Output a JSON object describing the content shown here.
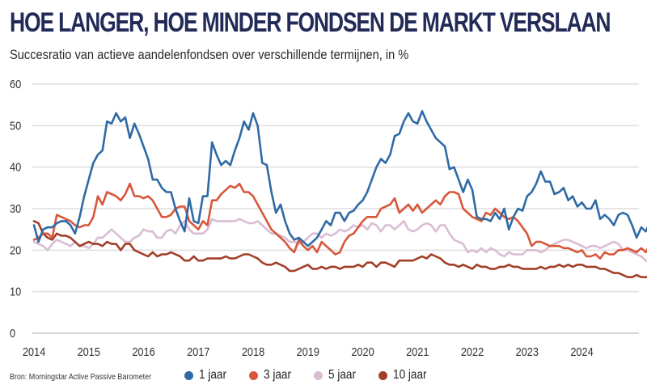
{
  "chart_data": {
    "type": "line",
    "title": "HOE LANGER, HOE MINDER FONDSEN DE MARKT VERSLAAN",
    "subtitle": "Succesratio van actieve aandelenfondsen over verschillende termijnen, in %",
    "xlabel": "",
    "ylabel": "",
    "ylim": [
      0,
      60
    ],
    "yticks": [
      "0",
      "10",
      "20",
      "30",
      "40",
      "50",
      "60"
    ],
    "ytick_values": [
      0,
      10,
      20,
      30,
      40,
      50,
      60
    ],
    "xlim": [
      2014,
      2024.92
    ],
    "xticks": [
      "2014",
      "2015",
      "2016",
      "2017",
      "2018",
      "2019",
      "2020",
      "2021",
      "2022",
      "2023",
      "2024"
    ],
    "xtick_values": [
      2014,
      2015,
      2016,
      2017,
      2018,
      2019,
      2020,
      2021,
      2022,
      2023,
      2024
    ],
    "x_start": 2014,
    "x_step": 0.0833333,
    "grid": "horizontal",
    "legend_position": "bottom",
    "source": "Bron: Morningstar Active Passive Barometer",
    "series": [
      {
        "name": "1 jaar",
        "color": "#2f6aa6",
        "values": [
          26,
          22,
          25,
          25.5,
          25.5,
          26.5,
          27,
          27,
          26,
          24,
          28,
          33,
          37,
          41,
          43,
          44,
          51,
          50.5,
          53,
          51,
          52,
          47,
          50.5,
          48,
          45,
          42,
          37,
          37,
          35,
          34,
          34,
          30,
          27,
          24.5,
          32.5,
          27,
          26.5,
          33,
          33,
          46,
          43,
          40.5,
          41.5,
          40.5,
          44,
          47,
          51,
          49,
          53,
          50,
          41,
          40.5,
          34,
          29,
          31,
          27,
          24,
          22.5,
          23,
          22,
          21,
          22,
          23,
          25,
          27,
          26,
          29,
          29,
          27,
          29,
          29.5,
          31,
          32,
          34,
          37,
          40,
          42,
          41,
          43,
          47.5,
          48,
          51,
          53,
          51,
          50.5,
          53.5,
          51,
          49,
          47,
          46,
          45,
          39.5,
          40,
          37,
          34,
          37,
          34.5,
          28,
          27.5,
          27.5,
          27,
          29,
          27.5,
          30,
          25,
          28,
          30,
          29.5,
          33,
          34,
          36,
          39,
          36.5,
          36.5,
          33.5,
          34,
          35,
          32,
          33,
          30.5,
          31.5,
          30,
          30,
          32,
          27.5,
          28.5,
          27.5,
          26,
          28.5,
          29,
          28.5,
          26,
          23,
          25.5,
          24.5,
          27,
          29
        ]
      },
      {
        "name": "3 jaar",
        "color": "#d8573a",
        "values": [
          22.5,
          23,
          24,
          24,
          23,
          28.5,
          28,
          27.5,
          27,
          26,
          25.5,
          26,
          26,
          28,
          33,
          31,
          34,
          33.5,
          33,
          32,
          33.5,
          36,
          33,
          33,
          32.5,
          33,
          32,
          30,
          28,
          28,
          28.5,
          30,
          30.5,
          30.5,
          27,
          26,
          25,
          27,
          26,
          32,
          32,
          33.5,
          34.5,
          35.5,
          35,
          36,
          34,
          34,
          33,
          31,
          29,
          27,
          25,
          24,
          23,
          22,
          20.5,
          19.5,
          22.5,
          21,
          20,
          21,
          19.5,
          22,
          21,
          20,
          19,
          19.5,
          22,
          23.5,
          24,
          25.5,
          27,
          28,
          28,
          28,
          30,
          30.5,
          31,
          32.5,
          29,
          30,
          31,
          29.5,
          31,
          29,
          30,
          31,
          32,
          31,
          33,
          34,
          34,
          33.5,
          30,
          29,
          28,
          27.5,
          27,
          29,
          28.5,
          30,
          29,
          28,
          27.5,
          28,
          27,
          25.5,
          24,
          21,
          22,
          22,
          21.5,
          21,
          21,
          21,
          20.5,
          20.5,
          20,
          19.5,
          20,
          18.5,
          18.5,
          19,
          18,
          19.5,
          19,
          19,
          20,
          20,
          20.5,
          20,
          19.5,
          20.5,
          19.5,
          21.5,
          21
        ]
      },
      {
        "name": "5 jaar",
        "color": "#d9bdd3",
        "values": [
          22,
          21.5,
          21,
          20,
          21.5,
          22.5,
          22,
          21.5,
          21,
          22,
          21,
          21,
          20.5,
          21.5,
          23,
          23,
          24,
          25,
          24,
          23,
          22,
          22,
          23,
          23.5,
          25,
          24.5,
          24.5,
          23,
          23,
          24.5,
          25,
          24,
          26,
          27,
          25,
          24,
          24,
          24,
          25,
          27.5,
          27,
          27,
          27,
          27,
          27,
          27.5,
          27,
          26.5,
          26.5,
          27,
          26,
          25,
          24,
          24,
          23.5,
          23,
          22,
          22,
          21.5,
          22,
          23,
          24,
          24,
          23,
          24,
          23.5,
          24,
          25,
          24.5,
          25,
          26,
          25.5,
          26,
          25,
          26.5,
          26,
          24.5,
          26,
          26,
          25,
          26,
          27,
          25,
          24.5,
          25,
          26,
          26.5,
          26,
          24.5,
          26,
          26,
          24,
          22.5,
          22,
          21.5,
          19.5,
          20,
          19.5,
          20.5,
          19.5,
          20.5,
          20,
          19,
          18.5,
          19.5,
          19,
          19,
          19,
          20,
          20,
          20,
          19.5,
          20,
          21,
          21.5,
          22,
          22.5,
          22.5,
          22,
          21.5,
          21,
          20.5,
          21,
          21,
          20.5,
          21,
          21.5,
          22,
          21.5,
          20,
          20,
          19.5,
          19,
          18.5,
          17.5,
          17,
          18
        ]
      },
      {
        "name": "10 jaar",
        "color": "#a23f28",
        "values": [
          27,
          26.5,
          24,
          23,
          22.5,
          24,
          23.5,
          23.5,
          23,
          22,
          21,
          21.5,
          22,
          21.5,
          21.5,
          21,
          22,
          21.5,
          21.5,
          20,
          21.5,
          21.5,
          20,
          19.5,
          19,
          18.5,
          19.5,
          18.5,
          19,
          19,
          19.5,
          19,
          18.5,
          17.5,
          17.5,
          18.5,
          17.5,
          17.5,
          18,
          18,
          18,
          18,
          18.5,
          18,
          18,
          18.5,
          19,
          19,
          18.5,
          18,
          17,
          16.5,
          16.5,
          17,
          16.5,
          16,
          15,
          15,
          15.5,
          16,
          16.5,
          15.5,
          15.5,
          16,
          15.5,
          16,
          16,
          15.5,
          16,
          16,
          16,
          16.5,
          16,
          17,
          17,
          16,
          17,
          17,
          16.5,
          16,
          17.5,
          17.5,
          17.5,
          17.5,
          18,
          18.5,
          18,
          19,
          18.5,
          18,
          17,
          16.5,
          16.5,
          16,
          16.5,
          16,
          15.5,
          16.5,
          16,
          16,
          15.5,
          15.5,
          16,
          16,
          16.5,
          16,
          16,
          15.5,
          15.5,
          15.5,
          15.5,
          16,
          15.5,
          16,
          16,
          16.5,
          16,
          16.5,
          16,
          16.5,
          16.5,
          16,
          16,
          16,
          15.5,
          15.5,
          15,
          14.5,
          14.5,
          14,
          13.5,
          13.5,
          14,
          13.5,
          13.5,
          13.5,
          13.5
        ]
      }
    ]
  }
}
